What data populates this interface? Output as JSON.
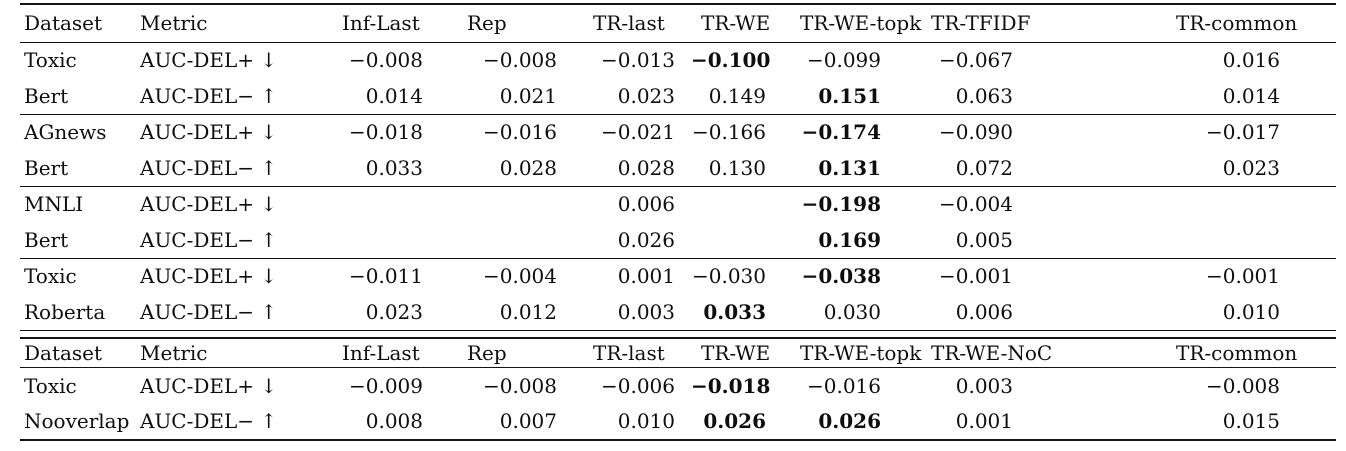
{
  "table": {
    "sections": [
      {
        "columns": [
          "Dataset",
          "Metric",
          "Inf-Last",
          "Rep",
          "TR-last",
          "TR-WE",
          "TR-WE-topk",
          "TR-TFIDF",
          "TR-common"
        ],
        "groups": [
          {
            "dataset": [
              "Toxic",
              "Bert"
            ],
            "rows": [
              {
                "metric": "AUC-DEL+ ↓",
                "values": [
                  "−0.008",
                  "−0.008",
                  "−0.013",
                  "−0.100",
                  "−0.099",
                  "−0.067",
                  "0.016"
                ],
                "bold": [
                  3
                ]
              },
              {
                "metric": "AUC-DEL− ↑",
                "values": [
                  "0.014",
                  "0.021",
                  "0.023",
                  "0.149",
                  "0.151",
                  "0.063",
                  "0.014"
                ],
                "bold": [
                  4
                ]
              }
            ]
          },
          {
            "dataset": [
              "AGnews",
              "Bert"
            ],
            "rows": [
              {
                "metric": "AUC-DEL+ ↓",
                "values": [
                  "−0.018",
                  "−0.016",
                  "−0.021",
                  "−0.166",
                  "−0.174",
                  "−0.090",
                  "−0.017"
                ],
                "bold": [
                  4
                ]
              },
              {
                "metric": "AUC-DEL− ↑",
                "values": [
                  "0.033",
                  "0.028",
                  "0.028",
                  "0.130",
                  "0.131",
                  "0.072",
                  "0.023"
                ],
                "bold": [
                  4
                ]
              }
            ]
          },
          {
            "dataset": [
              "MNLI",
              "Bert"
            ],
            "rows": [
              {
                "metric": "AUC-DEL+ ↓",
                "values": [
                  "",
                  "",
                  "0.006",
                  "",
                  "−0.198",
                  "−0.004",
                  ""
                ],
                "bold": [
                  4
                ]
              },
              {
                "metric": "AUC-DEL− ↑",
                "values": [
                  "",
                  "",
                  "0.026",
                  "",
                  "0.169",
                  "0.005",
                  ""
                ],
                "bold": [
                  4
                ]
              }
            ]
          },
          {
            "dataset": [
              "Toxic",
              "Roberta"
            ],
            "rows": [
              {
                "metric": "AUC-DEL+ ↓",
                "values": [
                  "−0.011",
                  "−0.004",
                  "0.001",
                  "−0.030",
                  "−0.038",
                  "−0.001",
                  "−0.001"
                ],
                "bold": [
                  4
                ]
              },
              {
                "metric": "AUC-DEL− ↑",
                "values": [
                  "0.023",
                  "0.012",
                  "0.003",
                  "0.033",
                  "0.030",
                  "0.006",
                  "0.010"
                ],
                "bold": [
                  3
                ]
              }
            ]
          }
        ]
      },
      {
        "columns": [
          "Dataset",
          "Metric",
          "Inf-Last",
          "Rep",
          "TR-last",
          "TR-WE",
          "TR-WE-topk",
          "TR-WE-NoC",
          "TR-common"
        ],
        "groups": [
          {
            "dataset": [
              "Toxic",
              "Nooverlap"
            ],
            "rows": [
              {
                "metric": "AUC-DEL+ ↓",
                "values": [
                  "−0.009",
                  "−0.008",
                  "−0.006",
                  "−0.018",
                  "−0.016",
                  "0.003",
                  "−0.008"
                ],
                "bold": [
                  3
                ]
              },
              {
                "metric": "AUC-DEL− ↑",
                "values": [
                  "0.008",
                  "0.007",
                  "0.010",
                  "0.026",
                  "0.026",
                  "0.001",
                  "0.015"
                ],
                "bold": [
                  3,
                  4
                ]
              }
            ]
          }
        ]
      }
    ]
  }
}
